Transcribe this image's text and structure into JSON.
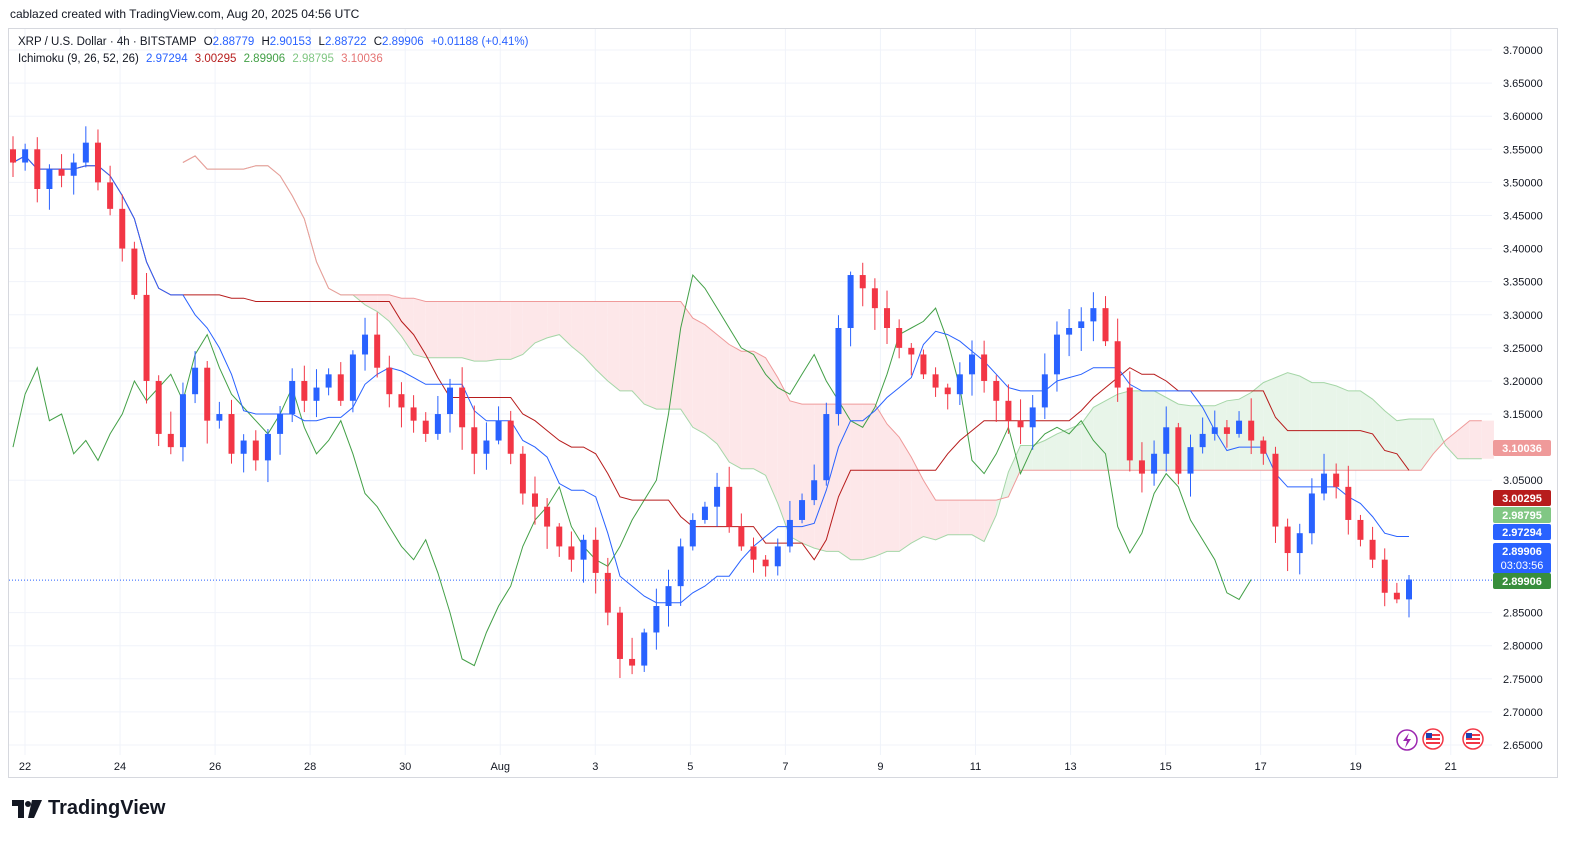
{
  "header": {
    "credit": "cablazed created with TradingView.com, Aug 20, 2025 04:56 UTC"
  },
  "legend": {
    "symbol": "XRP / U.S. Dollar · 4h · BITSTAMP",
    "o_label": "O",
    "o_val": "2.88779",
    "h_label": "H",
    "h_val": "2.90153",
    "l_label": "L",
    "l_val": "2.88722",
    "c_label": "C",
    "c_val": "2.89906",
    "change": "+0.01188 (+0.41%)",
    "indicator": "Ichimoku (9, 26, 52, 26)",
    "ind_values": [
      "2.97294",
      "3.00295",
      "2.89906",
      "2.98795",
      "3.10036"
    ]
  },
  "colors": {
    "up": "#2962ff",
    "down": "#f23645",
    "conversion": "#2962ff",
    "base": "#b71c1c",
    "lagging": "#43a047",
    "lead_a": "#a5d6a7",
    "lead_b": "#ef9a9a",
    "cloud_bull": "#e8f5e9",
    "cloud_bear": "#fde7e9"
  },
  "price_tags": [
    {
      "label": "3.10036",
      "color": "#ef9a9a",
      "text_color": "#131722"
    },
    {
      "label": "3.00295",
      "color": "#b71c1c"
    },
    {
      "label": "2.98795",
      "color": "#81c784",
      "text_color": "#131722"
    },
    {
      "label": "2.97294",
      "color": "#2962ff"
    },
    {
      "label": "2.89906",
      "sub": "03:03:56",
      "color": "#2962ff"
    },
    {
      "label": "2.89906",
      "color": "#388e3c"
    }
  ],
  "logo": {
    "text": "TradingView"
  },
  "chart_data": {
    "type": "candlestick",
    "symbol": "XRP / U.S. Dollar",
    "timeframe": "4h",
    "y_ticks": [
      2.65,
      2.7,
      2.75,
      2.8,
      2.85,
      3.05,
      3.15,
      3.2,
      3.25,
      3.3,
      3.35,
      3.4,
      3.45,
      3.5,
      3.55,
      3.6,
      3.65,
      3.7
    ],
    "y_tick_labels": [
      "2.65000",
      "2.70000",
      "2.75000",
      "2.80000",
      "2.85000",
      "3.05000",
      "3.15000",
      "3.20000",
      "3.25000",
      "3.30000",
      "3.35000",
      "3.40000",
      "3.45000",
      "3.50000",
      "3.55000",
      "3.60000",
      "3.65000",
      "3.70000"
    ],
    "ylim": [
      2.635,
      3.725
    ],
    "x_tick_labels": [
      "22",
      "24",
      "26",
      "28",
      "30",
      "Aug",
      "3",
      "5",
      "7",
      "9",
      "11",
      "13",
      "15",
      "17",
      "19",
      "21"
    ],
    "x_tick_dates": [
      "Jul 22",
      "Jul 24",
      "Jul 26",
      "Jul 28",
      "Jul 30",
      "Aug 1",
      "Aug 3",
      "Aug 5",
      "Aug 7",
      "Aug 9",
      "Aug 11",
      "Aug 13",
      "Aug 15",
      "Aug 17",
      "Aug 19",
      "Aug 21"
    ],
    "close_path": [
      3.53,
      3.55,
      3.49,
      3.52,
      3.51,
      3.53,
      3.56,
      3.5,
      3.46,
      3.4,
      3.33,
      3.2,
      3.12,
      3.1,
      3.18,
      3.22,
      3.14,
      3.15,
      3.09,
      3.11,
      3.08,
      3.12,
      3.15,
      3.2,
      3.17,
      3.19,
      3.21,
      3.17,
      3.24,
      3.27,
      3.22,
      3.18,
      3.16,
      3.14,
      3.12,
      3.15,
      3.19,
      3.13,
      3.09,
      3.11,
      3.14,
      3.09,
      3.03,
      3.01,
      2.98,
      2.95,
      2.93,
      2.96,
      2.91,
      2.85,
      2.78,
      2.77,
      2.82,
      2.86,
      2.89,
      2.95,
      2.99,
      3.01,
      3.04,
      2.98,
      2.95,
      2.93,
      2.92,
      2.95,
      2.99,
      3.02,
      3.05,
      3.15,
      3.28,
      3.36,
      3.34,
      3.31,
      3.28,
      3.25,
      3.24,
      3.21,
      3.19,
      3.18,
      3.21,
      3.24,
      3.2,
      3.17,
      3.14,
      3.13,
      3.16,
      3.21,
      3.27,
      3.28,
      3.29,
      3.31,
      3.26,
      3.19,
      3.08,
      3.06,
      3.09,
      3.13,
      3.06,
      3.1,
      3.12,
      3.13,
      3.12,
      3.14,
      3.11,
      3.09,
      2.98,
      2.94,
      2.97,
      3.03,
      3.06,
      3.04,
      2.99,
      2.96,
      2.93,
      2.88,
      2.87,
      2.9
    ],
    "conversion_line_endpoint": 2.97294,
    "base_line_endpoint": 3.00295,
    "lagging_span_endpoint": 2.89906,
    "leading_span_a_endpoint": 2.98795,
    "leading_span_b_endpoint": 3.10036,
    "last_close": 2.89906,
    "countdown": "03:03:56"
  }
}
